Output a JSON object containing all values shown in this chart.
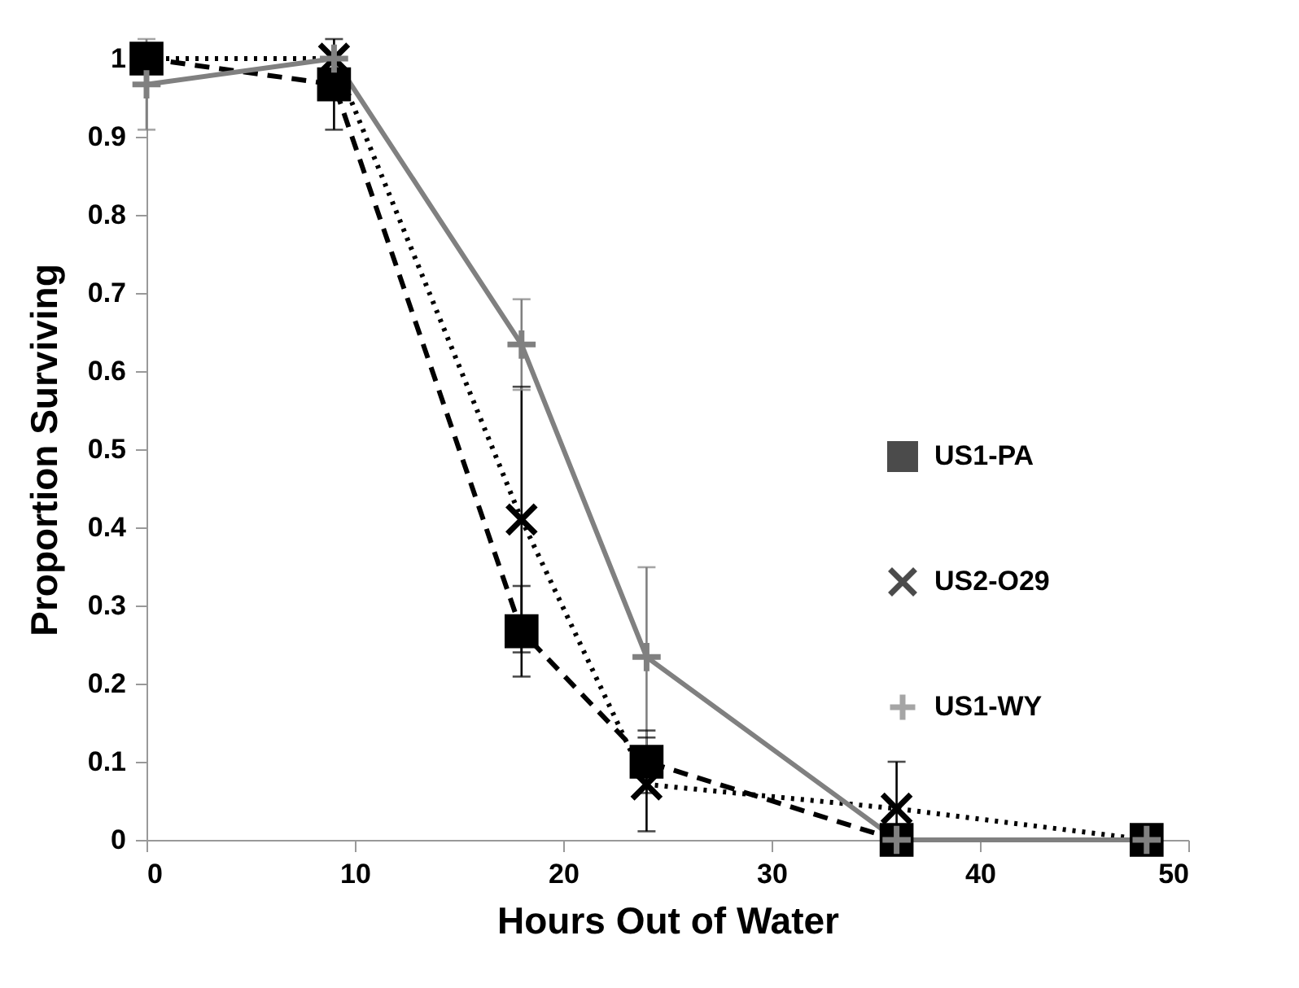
{
  "chart_data": {
    "type": "line",
    "xlabel": "Hours Out of Water",
    "ylabel": "Proportion Surviving",
    "x": [
      0,
      9,
      18,
      24,
      36,
      48
    ],
    "series": [
      {
        "name": "US1-PA",
        "color": "#000000",
        "marker": "square",
        "line_style": "dashed",
        "values": [
          1.0,
          0.967,
          0.267,
          0.1,
          0,
          0
        ],
        "errors": [
          null,
          0.058,
          0.058,
          0.04,
          null,
          null
        ]
      },
      {
        "name": "US2-O29",
        "color": "#000000",
        "marker": "x",
        "line_style": "dotted",
        "values": [
          1.0,
          1.0,
          0.41,
          0.071,
          0.04,
          0
        ],
        "errors": [
          null,
          null,
          0.17,
          0.06,
          [
            0,
            0.1
          ],
          null
        ]
      },
      {
        "name": "US1-WY",
        "color": "#808080",
        "marker": "cross",
        "line_style": "solid",
        "values": [
          0.967,
          1.0,
          0.634,
          0.234,
          0,
          0
        ],
        "errors": [
          0.058,
          null,
          0.058,
          0.115,
          null,
          null
        ]
      }
    ],
    "xlim": [
      0,
      50
    ],
    "xticks": [
      0,
      10,
      20,
      30,
      40,
      50
    ],
    "ylim": [
      0,
      1
    ],
    "yticks": [
      0,
      0.1,
      0.2,
      0.3,
      0.4,
      0.5,
      0.6,
      0.7,
      0.8,
      0.9,
      1
    ],
    "grid": false,
    "legend": "right"
  }
}
